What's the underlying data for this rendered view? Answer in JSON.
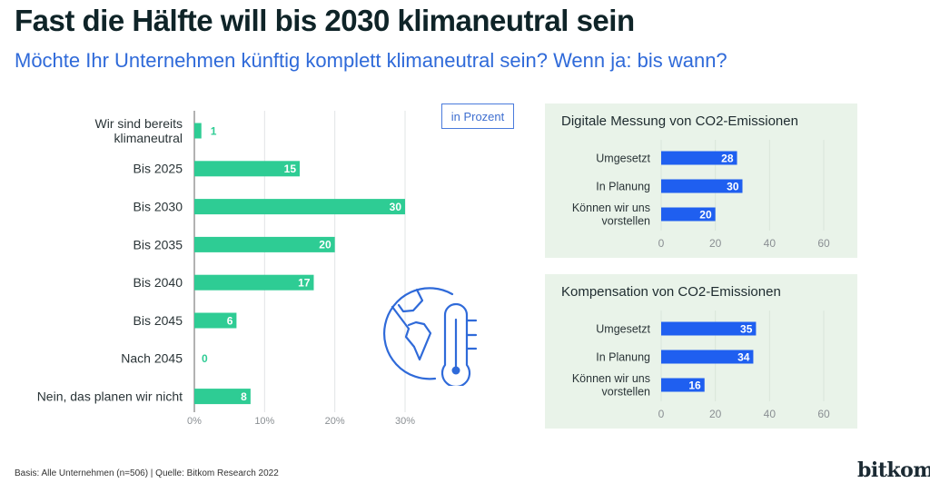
{
  "header": {
    "title": "Fast die Hälfte will bis 2030 klimaneutral sein",
    "subtitle": "Möchte Ihr Unternehmen künftig komplett klimaneutral sein? Wenn ja: bis wann?"
  },
  "unit_label": "in Prozent",
  "footer": {
    "source": "Basis: Alle Unternehmen (n=506) | Quelle: Bitkom Research 2022",
    "logo": "bitkom"
  },
  "colors": {
    "main_bar": "#2ecc94",
    "panel_bar": "#1f5ff0",
    "panel_bg": "#e9f3e9",
    "subtitle": "#2f6ad9"
  },
  "icon": "globe-thermometer-icon",
  "chart_data": [
    {
      "type": "bar",
      "orientation": "horizontal",
      "title": "",
      "categories": [
        [
          "Wir sind bereits",
          "klimaneutral"
        ],
        [
          "Bis 2025"
        ],
        [
          "Bis 2030"
        ],
        [
          "Bis 2035"
        ],
        [
          "Bis 2040"
        ],
        [
          "Bis 2045"
        ],
        [
          "Nach 2045"
        ],
        [
          "Nein, das planen wir nicht"
        ]
      ],
      "values": [
        1,
        15,
        30,
        20,
        17,
        6,
        0,
        8
      ],
      "xlim": [
        0,
        30
      ],
      "xticks": [
        0,
        10,
        20,
        30
      ],
      "xtick_labels": [
        "0%",
        "10%",
        "20%",
        "30%"
      ],
      "xlabel": "",
      "ylabel": "",
      "grid": true,
      "unit": "in Prozent"
    },
    {
      "type": "bar",
      "orientation": "horizontal",
      "title": "Digitale Messung von CO2-Emissionen",
      "categories": [
        [
          "Umgesetzt"
        ],
        [
          "In Planung"
        ],
        [
          "Können wir uns",
          "vorstellen"
        ]
      ],
      "values": [
        28,
        30,
        20
      ],
      "xlim": [
        0,
        60
      ],
      "xticks": [
        0,
        20,
        40,
        60
      ],
      "xtick_labels": [
        "0",
        "20",
        "40",
        "60"
      ],
      "grid": true
    },
    {
      "type": "bar",
      "orientation": "horizontal",
      "title": "Kompensation von CO2-Emissionen",
      "categories": [
        [
          "Umgesetzt"
        ],
        [
          "In Planung"
        ],
        [
          "Können wir uns",
          "vorstellen"
        ]
      ],
      "values": [
        35,
        34,
        16
      ],
      "xlim": [
        0,
        60
      ],
      "xticks": [
        0,
        20,
        40,
        60
      ],
      "xtick_labels": [
        "0",
        "20",
        "40",
        "60"
      ],
      "grid": true
    }
  ]
}
